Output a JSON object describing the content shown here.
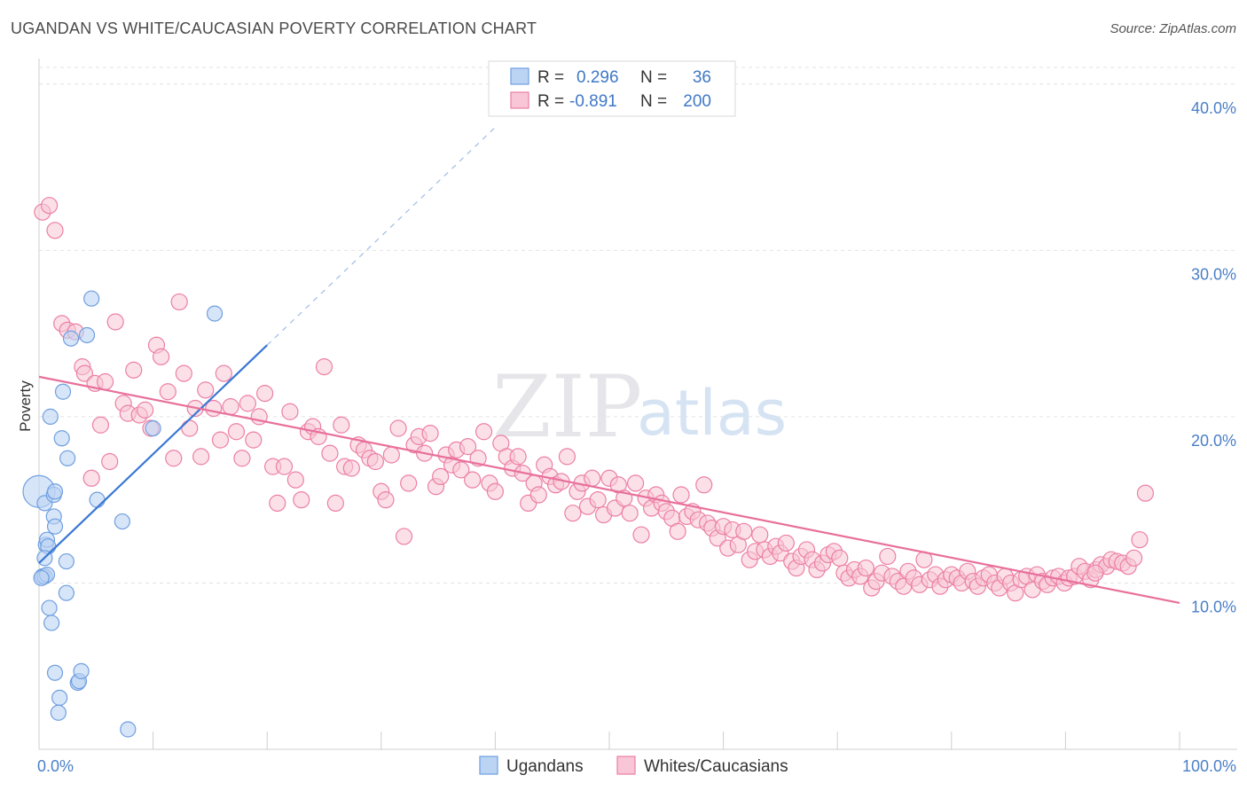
{
  "title": "UGANDAN VS WHITE/CAUCASIAN POVERTY CORRELATION CHART",
  "source": "Source: ZipAtlas.com",
  "watermark": {
    "zip": "ZIP",
    "atlas": "atlas"
  },
  "colors": {
    "ugandan": "#6f9fe0",
    "ugandan_fill": "#bcd4f4",
    "white": "#ec7fa5",
    "white_fill": "#f8c6d6",
    "blue_line": "#3a78d4",
    "pink_line": "#e8709b"
  },
  "legend": {
    "rows": [
      {
        "r_label": "R =",
        "r_value": "0.296",
        "n_label": "N =",
        "n_value": "36"
      },
      {
        "r_label": "R =",
        "r_value": "-0.891",
        "n_label": "N =",
        "n_value": "200"
      }
    ]
  },
  "bottom_legend": [
    "Ugandans",
    "Whites/Caucasians"
  ],
  "chart_data": {
    "type": "scatter",
    "title": "UGANDAN VS WHITE/CAUCASIAN POVERTY CORRELATION CHART",
    "xlabel": "",
    "ylabel": "Poverty",
    "xlim": [
      0,
      100
    ],
    "ylim": [
      0,
      41
    ],
    "x_ticks": [
      "0.0%",
      "100.0%"
    ],
    "y_ticks": [
      {
        "value": 10,
        "label": "10.0%"
      },
      {
        "value": 20,
        "label": "20.0%"
      },
      {
        "value": 30,
        "label": "30.0%"
      },
      {
        "value": 40,
        "label": "40.0%"
      }
    ],
    "grid": true,
    "series": [
      {
        "name": "Ugandans",
        "trend": {
          "x0": 0,
          "y0": 11.2,
          "x1": 20,
          "y1": 24.3,
          "dash_to_x": 40,
          "dash_to_y": 37.4
        },
        "points": [
          [
            0.0,
            15.5
          ],
          [
            0.5,
            14.8
          ],
          [
            1.3,
            15.3
          ],
          [
            1.4,
            15.5
          ],
          [
            0.6,
            12.3
          ],
          [
            0.7,
            12.6
          ],
          [
            0.8,
            12.2
          ],
          [
            1.3,
            14.0
          ],
          [
            1.4,
            13.4
          ],
          [
            0.5,
            11.5
          ],
          [
            0.3,
            10.4
          ],
          [
            0.5,
            10.4
          ],
          [
            0.7,
            10.5
          ],
          [
            2.4,
            11.3
          ],
          [
            1.0,
            20.0
          ],
          [
            2.1,
            21.5
          ],
          [
            2.0,
            18.7
          ],
          [
            2.5,
            17.5
          ],
          [
            2.8,
            24.7
          ],
          [
            4.2,
            24.9
          ],
          [
            4.6,
            27.1
          ],
          [
            5.1,
            15.0
          ],
          [
            7.3,
            13.7
          ],
          [
            10.0,
            19.3
          ],
          [
            15.4,
            26.2
          ],
          [
            0.9,
            8.5
          ],
          [
            1.1,
            7.6
          ],
          [
            2.4,
            9.4
          ],
          [
            1.4,
            4.6
          ],
          [
            1.8,
            3.1
          ],
          [
            1.7,
            2.2
          ],
          [
            3.4,
            4.0
          ],
          [
            3.5,
            4.1
          ],
          [
            3.7,
            4.7
          ],
          [
            7.8,
            1.2
          ],
          [
            0.2,
            10.3
          ]
        ]
      },
      {
        "name": "Whites/Caucasians",
        "trend": {
          "x0": 0,
          "y0": 22.4,
          "x1": 100,
          "y1": 8.8
        },
        "points": [
          [
            0.3,
            32.3
          ],
          [
            0.9,
            32.7
          ],
          [
            1.4,
            31.2
          ],
          [
            2.0,
            25.6
          ],
          [
            2.5,
            25.2
          ],
          [
            3.2,
            25.1
          ],
          [
            3.8,
            23.0
          ],
          [
            4.0,
            22.6
          ],
          [
            4.6,
            16.3
          ],
          [
            4.9,
            22.0
          ],
          [
            5.4,
            19.5
          ],
          [
            5.8,
            22.1
          ],
          [
            6.2,
            17.3
          ],
          [
            6.7,
            25.7
          ],
          [
            7.4,
            20.8
          ],
          [
            7.8,
            20.2
          ],
          [
            8.3,
            22.8
          ],
          [
            8.8,
            20.1
          ],
          [
            9.3,
            20.4
          ],
          [
            9.8,
            19.3
          ],
          [
            10.3,
            24.3
          ],
          [
            10.7,
            23.6
          ],
          [
            11.3,
            21.5
          ],
          [
            11.8,
            17.5
          ],
          [
            12.3,
            26.9
          ],
          [
            12.7,
            22.6
          ],
          [
            13.2,
            19.3
          ],
          [
            13.7,
            20.5
          ],
          [
            14.2,
            17.6
          ],
          [
            14.6,
            21.6
          ],
          [
            15.3,
            20.5
          ],
          [
            15.9,
            18.6
          ],
          [
            16.2,
            22.6
          ],
          [
            16.8,
            20.6
          ],
          [
            17.3,
            19.1
          ],
          [
            17.8,
            17.5
          ],
          [
            18.3,
            20.8
          ],
          [
            18.8,
            18.6
          ],
          [
            19.3,
            20.0
          ],
          [
            19.8,
            21.4
          ],
          [
            20.5,
            17.0
          ],
          [
            20.9,
            14.8
          ],
          [
            21.5,
            17.0
          ],
          [
            22.0,
            20.3
          ],
          [
            22.5,
            16.2
          ],
          [
            23.0,
            15.0
          ],
          [
            23.6,
            19.1
          ],
          [
            24.0,
            19.4
          ],
          [
            24.5,
            18.8
          ],
          [
            25.0,
            23.0
          ],
          [
            25.5,
            17.8
          ],
          [
            26.0,
            14.8
          ],
          [
            26.5,
            19.5
          ],
          [
            26.8,
            17.0
          ],
          [
            27.4,
            16.9
          ],
          [
            28.0,
            18.3
          ],
          [
            28.5,
            18.0
          ],
          [
            29.0,
            17.5
          ],
          [
            29.5,
            17.3
          ],
          [
            30.0,
            15.5
          ],
          [
            30.4,
            15.0
          ],
          [
            30.9,
            17.7
          ],
          [
            31.5,
            19.3
          ],
          [
            32.0,
            12.8
          ],
          [
            32.4,
            16.0
          ],
          [
            32.9,
            18.3
          ],
          [
            33.3,
            18.8
          ],
          [
            33.8,
            17.8
          ],
          [
            34.3,
            19.0
          ],
          [
            34.8,
            15.8
          ],
          [
            35.2,
            16.4
          ],
          [
            35.7,
            17.7
          ],
          [
            36.2,
            17.1
          ],
          [
            36.6,
            18.0
          ],
          [
            37.0,
            16.8
          ],
          [
            37.6,
            18.2
          ],
          [
            38.0,
            16.2
          ],
          [
            38.5,
            17.5
          ],
          [
            39.0,
            19.1
          ],
          [
            39.5,
            16.0
          ],
          [
            40.0,
            15.5
          ],
          [
            40.5,
            18.4
          ],
          [
            41.0,
            17.6
          ],
          [
            41.5,
            16.9
          ],
          [
            42.0,
            17.6
          ],
          [
            42.4,
            16.6
          ],
          [
            42.9,
            14.8
          ],
          [
            43.4,
            16.0
          ],
          [
            43.8,
            15.3
          ],
          [
            44.3,
            17.1
          ],
          [
            44.8,
            16.4
          ],
          [
            45.3,
            15.9
          ],
          [
            45.8,
            16.1
          ],
          [
            46.3,
            17.6
          ],
          [
            46.8,
            14.2
          ],
          [
            47.2,
            15.5
          ],
          [
            47.6,
            16.0
          ],
          [
            48.1,
            14.6
          ],
          [
            48.5,
            16.3
          ],
          [
            49.0,
            15.0
          ],
          [
            49.5,
            14.1
          ],
          [
            50.0,
            16.3
          ],
          [
            50.5,
            14.5
          ],
          [
            50.8,
            15.9
          ],
          [
            51.3,
            15.1
          ],
          [
            51.8,
            14.2
          ],
          [
            52.3,
            16.0
          ],
          [
            52.8,
            12.9
          ],
          [
            53.2,
            15.1
          ],
          [
            53.7,
            14.5
          ],
          [
            54.1,
            15.3
          ],
          [
            54.6,
            14.8
          ],
          [
            55.0,
            14.3
          ],
          [
            55.5,
            13.9
          ],
          [
            56.0,
            13.1
          ],
          [
            56.3,
            15.3
          ],
          [
            56.8,
            14.0
          ],
          [
            57.3,
            14.3
          ],
          [
            57.8,
            13.8
          ],
          [
            58.3,
            15.9
          ],
          [
            58.6,
            13.6
          ],
          [
            59.0,
            13.3
          ],
          [
            59.5,
            12.7
          ],
          [
            60.0,
            13.4
          ],
          [
            60.4,
            12.1
          ],
          [
            60.8,
            13.2
          ],
          [
            61.3,
            12.3
          ],
          [
            61.8,
            13.1
          ],
          [
            62.3,
            11.4
          ],
          [
            62.8,
            11.9
          ],
          [
            63.2,
            12.9
          ],
          [
            63.6,
            12.0
          ],
          [
            64.1,
            11.6
          ],
          [
            64.6,
            12.2
          ],
          [
            65.0,
            11.8
          ],
          [
            65.5,
            12.4
          ],
          [
            66.0,
            11.3
          ],
          [
            66.4,
            10.9
          ],
          [
            66.8,
            11.6
          ],
          [
            67.3,
            12.0
          ],
          [
            67.8,
            11.4
          ],
          [
            68.2,
            10.8
          ],
          [
            68.7,
            11.2
          ],
          [
            69.2,
            11.7
          ],
          [
            69.7,
            11.9
          ],
          [
            70.2,
            11.5
          ],
          [
            70.6,
            10.6
          ],
          [
            71.0,
            10.3
          ],
          [
            71.5,
            10.8
          ],
          [
            72.0,
            10.4
          ],
          [
            72.5,
            10.9
          ],
          [
            73.0,
            9.7
          ],
          [
            73.4,
            10.1
          ],
          [
            73.9,
            10.6
          ],
          [
            74.4,
            11.6
          ],
          [
            74.8,
            10.4
          ],
          [
            75.3,
            10.1
          ],
          [
            75.8,
            9.8
          ],
          [
            76.2,
            10.7
          ],
          [
            76.7,
            10.3
          ],
          [
            77.2,
            9.9
          ],
          [
            77.6,
            11.4
          ],
          [
            78.1,
            10.2
          ],
          [
            78.6,
            10.5
          ],
          [
            79.0,
            9.8
          ],
          [
            79.5,
            10.2
          ],
          [
            80.0,
            10.5
          ],
          [
            80.5,
            10.3
          ],
          [
            80.9,
            10.0
          ],
          [
            81.4,
            10.7
          ],
          [
            81.9,
            10.1
          ],
          [
            82.3,
            9.8
          ],
          [
            82.8,
            10.3
          ],
          [
            83.3,
            10.5
          ],
          [
            83.8,
            10.0
          ],
          [
            84.2,
            9.7
          ],
          [
            84.7,
            10.4
          ],
          [
            85.2,
            10.0
          ],
          [
            85.6,
            9.4
          ],
          [
            86.1,
            10.2
          ],
          [
            86.6,
            10.4
          ],
          [
            87.1,
            9.6
          ],
          [
            87.5,
            10.5
          ],
          [
            88.0,
            10.1
          ],
          [
            88.4,
            9.9
          ],
          [
            88.9,
            10.3
          ],
          [
            89.4,
            10.4
          ],
          [
            89.9,
            10.0
          ],
          [
            90.3,
            10.3
          ],
          [
            90.8,
            10.4
          ],
          [
            91.2,
            11.0
          ],
          [
            91.7,
            10.7
          ],
          [
            92.2,
            10.2
          ],
          [
            92.7,
            10.8
          ],
          [
            93.1,
            11.1
          ],
          [
            93.6,
            11.0
          ],
          [
            94.0,
            11.4
          ],
          [
            94.5,
            11.3
          ],
          [
            95.0,
            11.2
          ],
          [
            95.5,
            11.0
          ],
          [
            96.0,
            11.5
          ],
          [
            96.5,
            12.6
          ],
          [
            97.0,
            15.4
          ],
          [
            92.6,
            10.6
          ]
        ]
      }
    ]
  }
}
